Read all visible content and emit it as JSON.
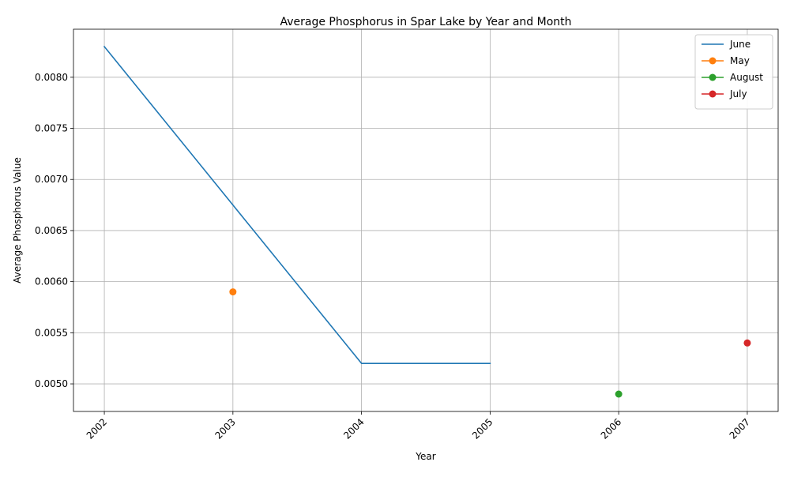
{
  "chart_data": {
    "type": "line",
    "title": "Average Phosphorus in Spar Lake by Year and Month",
    "xlabel": "Year",
    "ylabel": "Average Phosphorus Value",
    "x_ticks": [
      "2002",
      "2003",
      "2004",
      "2005",
      "2006",
      "2007"
    ],
    "y_ticks": [
      "0.0050",
      "0.0055",
      "0.0060",
      "0.0065",
      "0.0070",
      "0.0075",
      "0.0080"
    ],
    "xlim": [
      2001.76,
      2007.24
    ],
    "ylim": [
      0.00473,
      0.00847
    ],
    "grid": true,
    "legend_position": "top-right",
    "series": [
      {
        "name": "June",
        "color": "#1f77b4",
        "markers": false,
        "points": [
          [
            2002,
            0.0083
          ],
          [
            2003,
            0.00675
          ],
          [
            2004,
            0.0052
          ],
          [
            2005,
            0.0052
          ]
        ]
      },
      {
        "name": "May",
        "color": "#ff7f0e",
        "markers": true,
        "points": [
          [
            2003,
            0.0059
          ]
        ]
      },
      {
        "name": "August",
        "color": "#2ca02c",
        "markers": true,
        "points": [
          [
            2006,
            0.0049
          ]
        ]
      },
      {
        "name": "July",
        "color": "#d62728",
        "markers": true,
        "points": [
          [
            2007,
            0.0054
          ]
        ]
      }
    ]
  }
}
